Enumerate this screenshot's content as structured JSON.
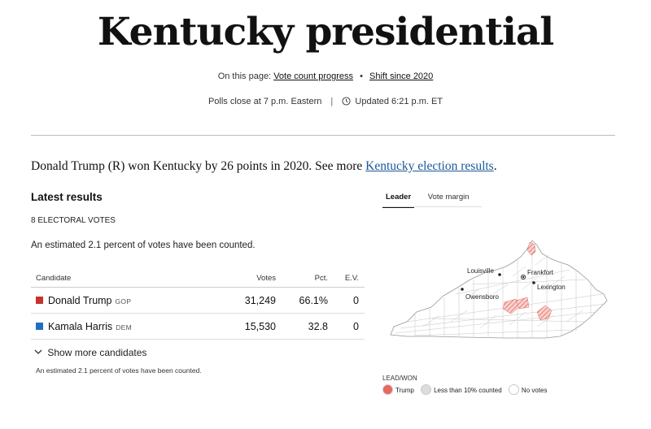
{
  "header": {
    "title": "Kentucky presidential",
    "on_this_page_label": "On this page:",
    "links": [
      "Vote count progress",
      "Shift since 2020"
    ],
    "separator": "•",
    "polls_close": "Polls close at 7 p.m. Eastern",
    "divider": "|",
    "updated": "Updated 6:21 p.m. ET"
  },
  "summary": {
    "text": "Donald Trump (R) won Kentucky by 26 points in 2020. See more ",
    "link": "Kentucky election results",
    "end": "."
  },
  "results": {
    "heading": "Latest results",
    "electoral_votes": "8 ELECTORAL VOTES",
    "estimate": "An estimated 2.1 percent of votes have been counted.",
    "columns": [
      "Candidate",
      "Votes",
      "Pct.",
      "E.V."
    ],
    "rows": [
      {
        "name": "Donald Trump",
        "party": "GOP",
        "votes": "31,249",
        "pct": "66.1%",
        "ev": "0",
        "color": "#c8312e"
      },
      {
        "name": "Kamala Harris",
        "party": "DEM",
        "votes": "15,530",
        "pct": "32.8",
        "ev": "0",
        "color": "#1f6ec0"
      }
    ],
    "show_more": "Show more candidates",
    "footnote": "An estimated 2.1 percent of votes have been counted."
  },
  "map": {
    "tabs": [
      "Leader",
      "Vote margin"
    ],
    "active_tab": "Leader",
    "cities": [
      "Louisville",
      "Frankfort",
      "Lexington",
      "Owensboro"
    ],
    "legend_title": "LEAD/WON",
    "legend": [
      {
        "label": "Trump",
        "color": "#e8675f"
      },
      {
        "label": "Less than 10% counted",
        "color": "#dddddd"
      },
      {
        "label": "No votes",
        "color": "#ffffff"
      }
    ]
  }
}
